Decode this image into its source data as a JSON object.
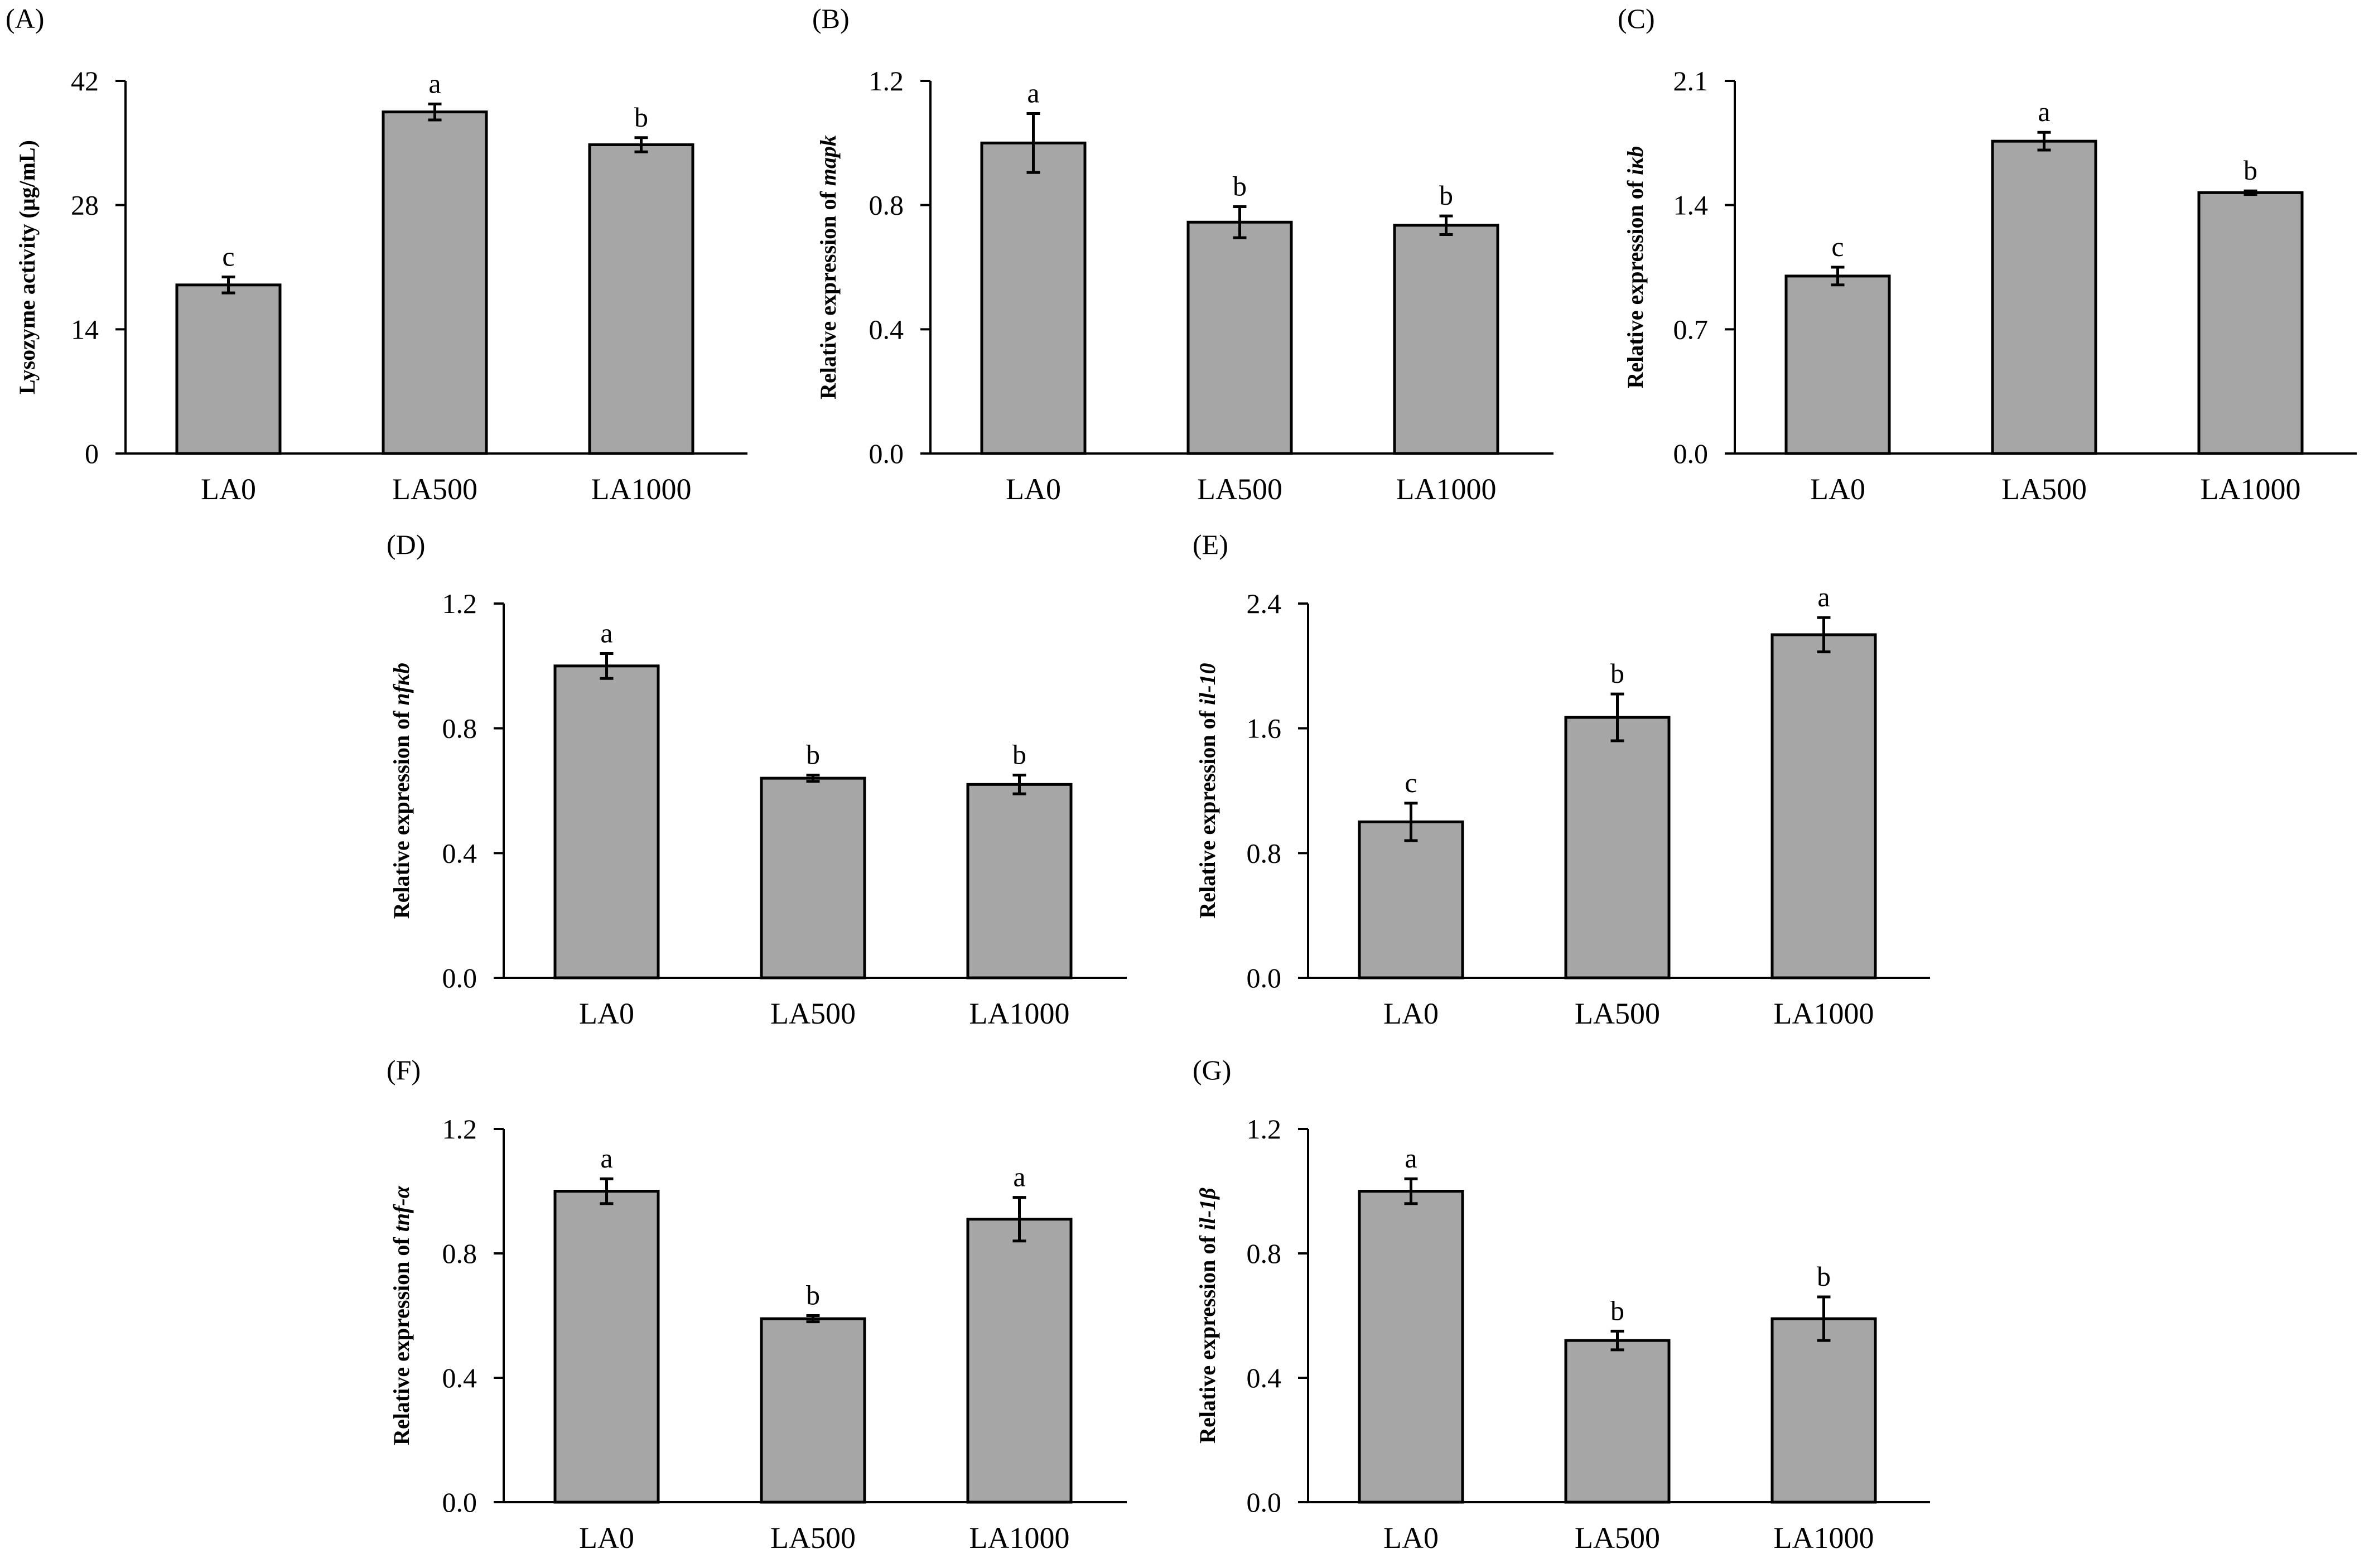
{
  "figure": {
    "bar_color": "#a6a6a6",
    "edge_color": "#000000"
  },
  "chart_data": [
    {
      "type": "bar",
      "panel_label": "(A)",
      "categories": [
        "LA0",
        "LA500",
        "LA1000"
      ],
      "values": [
        19,
        38.5,
        34.8
      ],
      "errors": [
        0.9,
        0.9,
        0.8
      ],
      "sig_letters": [
        "c",
        "a",
        "b"
      ],
      "ylabel": {
        "prefix": "Lysozyme activity (μg/mL)",
        "gene": ""
      },
      "ylim": [
        0,
        42
      ],
      "yticks": [
        "0",
        "14",
        "28",
        "42"
      ]
    },
    {
      "type": "bar",
      "panel_label": "(B)",
      "categories": [
        "LA0",
        "LA500",
        "LA1000"
      ],
      "values": [
        1.0,
        0.745,
        0.735
      ],
      "errors": [
        0.095,
        0.05,
        0.03
      ],
      "sig_letters": [
        "a",
        "b",
        "b"
      ],
      "ylabel": {
        "prefix": "Relative expression of ",
        "gene": "mapk"
      },
      "ylim": [
        0,
        1.2
      ],
      "yticks": [
        "0.0",
        "0.4",
        "0.8",
        "1.2"
      ]
    },
    {
      "type": "bar",
      "panel_label": "(C)",
      "categories": [
        "LA0",
        "LA500",
        "LA1000"
      ],
      "values": [
        1.0,
        1.76,
        1.47
      ],
      "errors": [
        0.05,
        0.05,
        0.01
      ],
      "sig_letters": [
        "c",
        "a",
        "b"
      ],
      "ylabel": {
        "prefix": "Relative expression of ",
        "gene": "iκb"
      },
      "ylim": [
        0,
        2.1
      ],
      "yticks": [
        "0.0",
        "0.7",
        "1.4",
        "2.1"
      ]
    },
    {
      "type": "bar",
      "panel_label": "(D)",
      "categories": [
        "LA0",
        "LA500",
        "LA1000"
      ],
      "values": [
        1.0,
        0.64,
        0.62
      ],
      "errors": [
        0.04,
        0.01,
        0.03
      ],
      "sig_letters": [
        "a",
        "b",
        "b"
      ],
      "ylabel": {
        "prefix": "Relative expression of ",
        "gene": "nfκb"
      },
      "ylim": [
        0,
        1.2
      ],
      "yticks": [
        "0.0",
        "0.4",
        "0.8",
        "1.2"
      ]
    },
    {
      "type": "bar",
      "panel_label": "(E)",
      "categories": [
        "LA0",
        "LA500",
        "LA1000"
      ],
      "values": [
        1.0,
        1.67,
        2.2
      ],
      "errors": [
        0.12,
        0.15,
        0.11
      ],
      "sig_letters": [
        "c",
        "b",
        "a"
      ],
      "ylabel": {
        "prefix": "Relative expression of ",
        "gene": "il-10"
      },
      "ylim": [
        0,
        2.4
      ],
      "yticks": [
        "0.0",
        "0.8",
        "1.6",
        "2.4"
      ]
    },
    {
      "type": "bar",
      "panel_label": "(F)",
      "categories": [
        "LA0",
        "LA500",
        "LA1000"
      ],
      "values": [
        1.0,
        0.59,
        0.91
      ],
      "errors": [
        0.04,
        0.01,
        0.07
      ],
      "sig_letters": [
        "a",
        "b",
        "a"
      ],
      "ylabel": {
        "prefix": "Relative expression of ",
        "gene": "tnf-α"
      },
      "ylim": [
        0,
        1.2
      ],
      "yticks": [
        "0.0",
        "0.4",
        "0.8",
        "1.2"
      ]
    },
    {
      "type": "bar",
      "panel_label": "(G)",
      "categories": [
        "LA0",
        "LA500",
        "LA1000"
      ],
      "values": [
        1.0,
        0.52,
        0.59
      ],
      "errors": [
        0.04,
        0.03,
        0.07
      ],
      "sig_letters": [
        "a",
        "b",
        "b"
      ],
      "ylabel": {
        "prefix": "Relative expression of ",
        "gene": "il-1β"
      },
      "ylim": [
        0,
        1.2
      ],
      "yticks": [
        "0.0",
        "0.4",
        "0.8",
        "1.2"
      ]
    }
  ]
}
